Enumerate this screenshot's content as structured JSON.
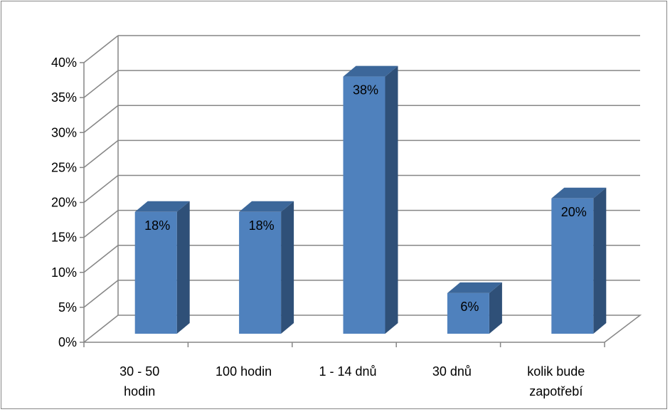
{
  "chart_data": {
    "type": "bar",
    "style": "3d-clustered-column",
    "categories": [
      [
        "30 - 50",
        "hodin"
      ],
      [
        "100 hodin"
      ],
      [
        "1 - 14 dnů"
      ],
      [
        "30 dnů"
      ],
      [
        "kolik bude",
        "zapotřebí"
      ]
    ],
    "values": [
      0.18,
      0.18,
      0.38,
      0.06,
      0.2
    ],
    "data_labels": [
      "18%",
      "18%",
      "38%",
      "6%",
      "20%"
    ],
    "y_ticks": [
      "0%",
      "5%",
      "10%",
      "15%",
      "20%",
      "25%",
      "30%",
      "35%",
      "40%"
    ],
    "ylim": [
      0,
      0.4
    ],
    "grid": true,
    "legend": "none",
    "colors": {
      "bar_front": "#4f81bd",
      "bar_side": "#2f5078",
      "bar_top": "#3c679a",
      "gridline": "#868686",
      "axis": "#868686"
    }
  }
}
